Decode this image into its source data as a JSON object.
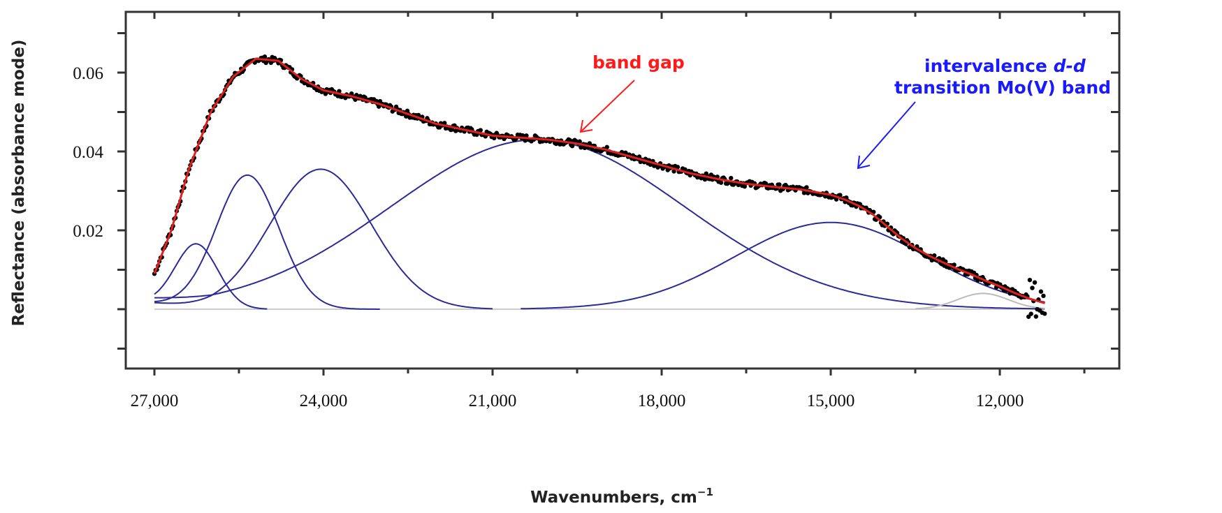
{
  "chart_data": {
    "type": "line",
    "title": "",
    "xlabel": "Wavenumbers, cm",
    "xlabel_superscript": "−1",
    "ylabel": "Reflectance (absorbance mode)",
    "xlim": [
      27500,
      9880
    ],
    "ylim": [
      -0.015,
      0.075
    ],
    "x_reversed": true,
    "x_ticks": [
      27000,
      24000,
      21000,
      18000,
      15000,
      12000
    ],
    "x_tick_labels": [
      "27,000",
      "24,000",
      "21,000",
      "18,000",
      "15,000",
      "12,000"
    ],
    "x_minor_step": 1500,
    "y_ticks": [
      0.02,
      0.04,
      0.06
    ],
    "y_tick_labels": [
      "0.02",
      "0.04",
      "0.06"
    ],
    "y_minor_step": 0.01,
    "grid": false,
    "legend": "none",
    "colors": {
      "data": "#000000",
      "fit": "#e0201c",
      "components": "#2a2a98",
      "minor_component": "#bbbbbb",
      "baseline": "#cccccc",
      "band_gap": "#ff1a1a",
      "intervalence": "#1a1aff"
    },
    "fit_curve": {
      "x": [
        27000,
        26700,
        26400,
        26000,
        25600,
        25200,
        24800,
        24400,
        24000,
        23500,
        23000,
        22500,
        22000,
        21500,
        21000,
        20500,
        20000,
        19500,
        19000,
        18500,
        18000,
        17500,
        17000,
        16500,
        16000,
        15500,
        15000,
        14750,
        14500,
        14250,
        14000,
        13750,
        13500,
        13250,
        13000,
        12750,
        12500,
        12250,
        12000,
        11750,
        11500,
        11200
      ],
      "y": [
        0.009,
        0.02,
        0.035,
        0.05,
        0.059,
        0.0635,
        0.063,
        0.0585,
        0.0555,
        0.054,
        0.052,
        0.0495,
        0.047,
        0.0455,
        0.044,
        0.0435,
        0.043,
        0.042,
        0.0405,
        0.0385,
        0.0365,
        0.0345,
        0.033,
        0.0318,
        0.031,
        0.0303,
        0.029,
        0.0278,
        0.0262,
        0.024,
        0.021,
        0.018,
        0.0155,
        0.0135,
        0.0118,
        0.0102,
        0.0088,
        0.0072,
        0.0058,
        0.0042,
        0.0028,
        0.0015
      ]
    },
    "components": [
      {
        "center": 26250,
        "amplitude": 0.0162,
        "sigma": 380,
        "x_range": [
          27000,
          25000
        ]
      },
      {
        "center": 25350,
        "amplitude": 0.034,
        "sigma": 560,
        "x_range": [
          27000,
          23000
        ]
      },
      {
        "center": 24050,
        "amplitude": 0.0355,
        "sigma": 900,
        "x_range": [
          27000,
          21000
        ]
      },
      {
        "center": 20200,
        "amplitude": 0.043,
        "sigma": 2600,
        "x_range": [
          27000,
          11200
        ]
      },
      {
        "center": 15000,
        "amplitude": 0.022,
        "sigma": 1700,
        "x_range": [
          20500,
          11200
        ]
      },
      {
        "center": 12300,
        "amplitude": 0.004,
        "sigma": 450,
        "x_range": [
          13500,
          11200
        ],
        "minor": true
      }
    ],
    "data_x_range": [
      27000,
      11200
    ],
    "annotations": [
      {
        "text": "band gap",
        "color": "band_gap",
        "points_to": [
          19600,
          0.0445
        ]
      },
      {
        "lines": [
          "intervalence ",
          "d-d",
          "transition Mo(V) band"
        ],
        "color": "intervalence",
        "points_to": [
          14600,
          0.036
        ]
      }
    ]
  }
}
